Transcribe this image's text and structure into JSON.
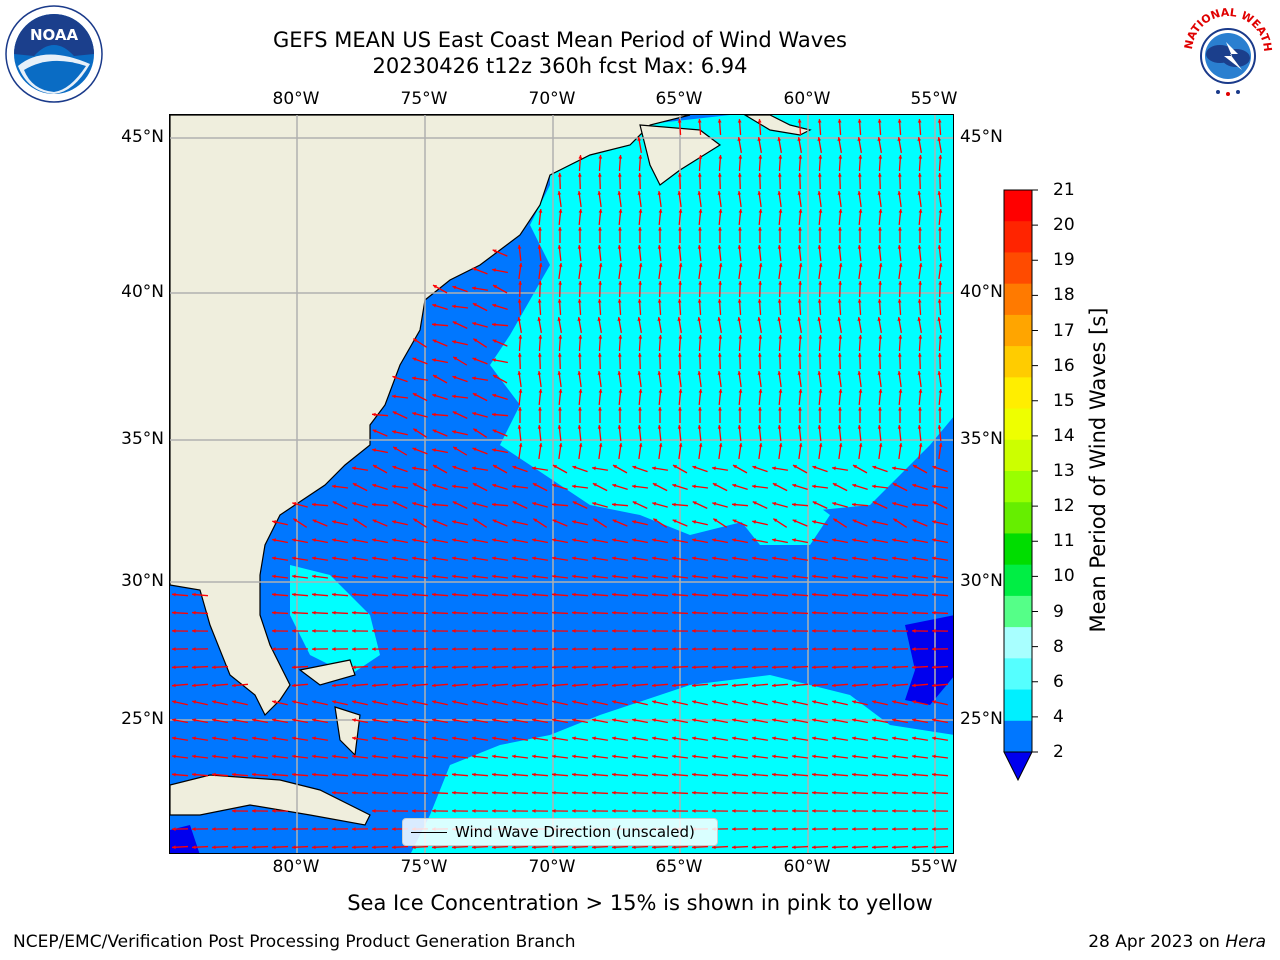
{
  "header": {
    "title_line1": "GEFS MEAN US East Coast Mean Period of Wind Waves",
    "title_line2": "20230426 t12z 360h fcst   Max: 6.94"
  },
  "logos": {
    "left": "noaa-logo",
    "left_text": "NOAA",
    "right": "nws-logo",
    "right_text": "NATIONAL WEATHER SERVICE"
  },
  "map": {
    "lon_labels": [
      "80°W",
      "75°W",
      "70°W",
      "65°W",
      "60°W",
      "55°W"
    ],
    "lat_labels": [
      "45°N",
      "40°N",
      "35°N",
      "30°N",
      "25°N"
    ],
    "colors": {
      "land": "#efeedd",
      "water_dark": "#0077ff",
      "water_light": "#00ffff",
      "water_deep": "#0000ee",
      "arrows": "#ff0000",
      "grid": "#b0b0b0"
    },
    "legend_label": "Wind Wave Direction (unscaled)"
  },
  "colorbar": {
    "label": "Mean Period of Wind Waves [s]",
    "ticks": [
      "21",
      "20",
      "19",
      "18",
      "17",
      "16",
      "15",
      "14",
      "13",
      "12",
      "11",
      "10",
      "9",
      "8",
      "6",
      "4",
      "2"
    ],
    "colors": [
      "#ff0000",
      "#ff2400",
      "#ff4b00",
      "#ff7a00",
      "#ffa500",
      "#ffcc00",
      "#ffee00",
      "#eeff00",
      "#ccff00",
      "#99ff00",
      "#66ee00",
      "#00dd00",
      "#00ee44",
      "#55ff88",
      "#a8ffff",
      "#55ffff",
      "#00f0ff",
      "#0077ff"
    ],
    "under_color": "#0000ee"
  },
  "notes": {
    "sea_ice": "Sea Ice Concentration > 15% is shown in pink to yellow"
  },
  "footer": {
    "left": "NCEP/EMC/Verification Post Processing Product Generation Branch",
    "right_date": "28 Apr 2023 on",
    "right_host": "Hera"
  }
}
